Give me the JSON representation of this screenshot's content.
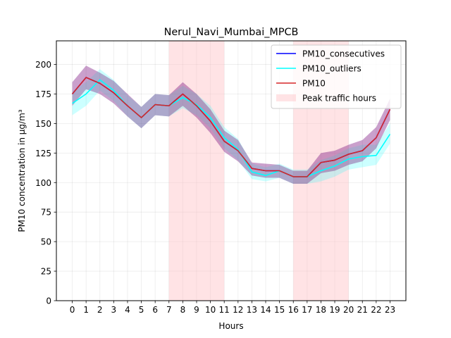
{
  "chart_data": {
    "type": "line",
    "title": "Nerul_Navi_Mumbai_MPCB",
    "xlabel": "Hours",
    "ylabel": "PM10 concentration in µg/m³",
    "x": [
      0,
      1,
      2,
      3,
      4,
      5,
      6,
      7,
      8,
      9,
      10,
      11,
      12,
      13,
      14,
      15,
      16,
      17,
      18,
      19,
      20,
      21,
      22,
      23
    ],
    "xlim": [
      -1.15,
      24.15
    ],
    "ylim": [
      0,
      220
    ],
    "yticks": [
      0,
      25,
      50,
      75,
      100,
      125,
      150,
      175,
      200
    ],
    "grid": true,
    "legend_position": "top-right",
    "series": [
      {
        "name": "PM10_consecutives",
        "color": "#0000ff",
        "values": [
          175,
          189,
          184,
          176,
          165,
          155,
          166,
          165,
          175,
          165,
          152,
          135,
          127,
          112,
          110,
          110,
          105,
          105,
          117,
          119,
          124,
          127,
          138,
          162
        ],
        "band_low": [
          165,
          179,
          175,
          167,
          156,
          146,
          157,
          156,
          165,
          155,
          142,
          126,
          118,
          106,
          104,
          104,
          99,
          99,
          108,
          110,
          115,
          118,
          129,
          153
        ],
        "band_high": [
          185,
          199,
          193,
          186,
          175,
          164,
          175,
          174,
          185,
          175,
          162,
          144,
          136,
          117,
          116,
          115,
          110,
          110,
          125,
          127,
          132,
          136,
          147,
          171
        ]
      },
      {
        "name": "PM10_outliers",
        "color": "#00ffff",
        "values": [
          167,
          175,
          187,
          178,
          165,
          155,
          166,
          165,
          172,
          166,
          155,
          138,
          128,
          109,
          106,
          110,
          105,
          105,
          110,
          114,
          120,
          122,
          123,
          141
        ],
        "band_low": [
          157,
          165,
          178,
          169,
          156,
          146,
          157,
          156,
          163,
          157,
          146,
          129,
          119,
          103,
          101,
          104,
          99,
          99,
          101,
          105,
          111,
          113,
          115,
          133
        ],
        "band_high": [
          177,
          185,
          196,
          187,
          174,
          164,
          175,
          174,
          182,
          175,
          165,
          147,
          137,
          116,
          113,
          116,
          111,
          111,
          119,
          123,
          129,
          132,
          132,
          150
        ]
      },
      {
        "name": "PM10",
        "color": "#d62728",
        "values": [
          175,
          189,
          184,
          176,
          165,
          155,
          166,
          165,
          175,
          165,
          152,
          135,
          127,
          112,
          110,
          110,
          105,
          105,
          117,
          119,
          124,
          127,
          138,
          162
        ],
        "band_low": [
          165,
          179,
          175,
          167,
          156,
          146,
          157,
          156,
          165,
          155,
          142,
          126,
          118,
          106,
          104,
          104,
          99,
          99,
          108,
          110,
          115,
          118,
          129,
          153
        ],
        "band_high": [
          185,
          199,
          193,
          186,
          175,
          164,
          175,
          174,
          185,
          175,
          162,
          144,
          136,
          117,
          116,
          115,
          110,
          110,
          125,
          127,
          132,
          136,
          147,
          171
        ]
      }
    ],
    "shaded_regions": [
      {
        "name": "Peak traffic hours",
        "x_start": 7,
        "x_end": 11,
        "color": "#ffc0c6"
      },
      {
        "name": "Peak traffic hours",
        "x_start": 16,
        "x_end": 20,
        "color": "#ffc0c6"
      }
    ],
    "legend": [
      {
        "label": "PM10_consecutives",
        "kind": "line",
        "color": "#0000ff"
      },
      {
        "label": "PM10_outliers",
        "kind": "line",
        "color": "#00ffff"
      },
      {
        "label": "PM10",
        "kind": "line",
        "color": "#d62728"
      },
      {
        "label": "Peak traffic hours",
        "kind": "patch",
        "color": "#ffc0c6"
      }
    ]
  }
}
